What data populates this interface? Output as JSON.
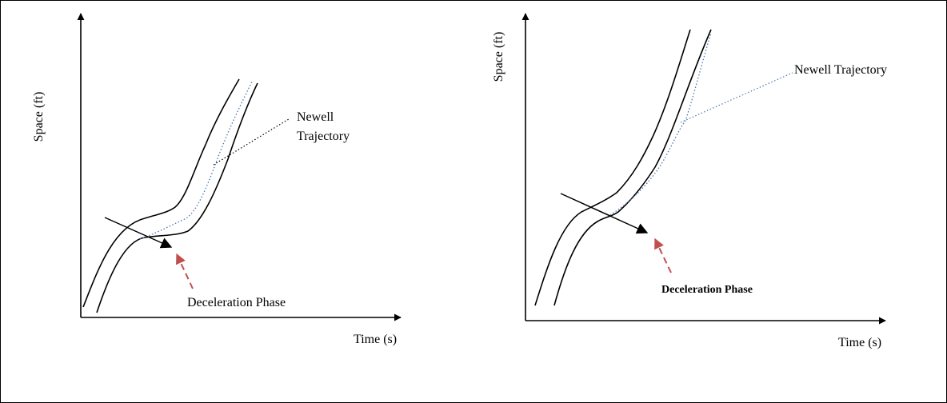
{
  "panels": [
    {
      "ylabel": "Space (ft)",
      "xlabel": "Time (s)",
      "annotation_lines": [
        "Newell",
        "Trajectory"
      ],
      "phase_label": "Deceleration Phase",
      "phase_label_bold": false
    },
    {
      "ylabel": "Space (ft)",
      "xlabel": "Time (s)",
      "annotation_lines": [
        "Newell Trajectory"
      ],
      "phase_label": "Deceleration Phase",
      "phase_label_bold": true
    }
  ],
  "colors": {
    "trajectory": "#000000",
    "newell": "#4a78b0",
    "phase_arrow": "#c0504d"
  }
}
